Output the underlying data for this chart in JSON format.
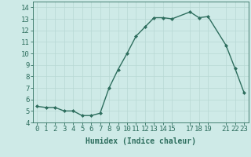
{
  "x": [
    0,
    1,
    2,
    3,
    4,
    5,
    6,
    7,
    8,
    9,
    10,
    11,
    12,
    13,
    14,
    15,
    17,
    18,
    19,
    21,
    22,
    23
  ],
  "y": [
    5.4,
    5.3,
    5.3,
    5.0,
    5.0,
    4.6,
    4.6,
    4.8,
    7.0,
    8.6,
    10.0,
    11.5,
    12.3,
    13.1,
    13.1,
    13.0,
    13.6,
    13.1,
    13.2,
    10.7,
    8.7,
    6.6
  ],
  "line_color": "#2e6e5e",
  "marker": "D",
  "marker_size": 2.0,
  "line_width": 1.0,
  "bg_color": "#ceeae7",
  "grid_color": "#b8d8d4",
  "xlabel": "Humidex (Indice chaleur)",
  "xlim": [
    -0.5,
    23.5
  ],
  "ylim": [
    4.0,
    14.5
  ],
  "yticks": [
    4,
    5,
    6,
    7,
    8,
    9,
    10,
    11,
    12,
    13,
    14
  ],
  "xticks": [
    0,
    1,
    2,
    3,
    4,
    5,
    6,
    7,
    8,
    9,
    10,
    11,
    12,
    13,
    14,
    15,
    17,
    18,
    19,
    21,
    22,
    23
  ],
  "xlabel_fontsize": 7,
  "tick_fontsize": 6.5,
  "tick_color": "#2e6e5e",
  "axis_color": "#2e6e5e",
  "grid_linewidth": 0.5
}
